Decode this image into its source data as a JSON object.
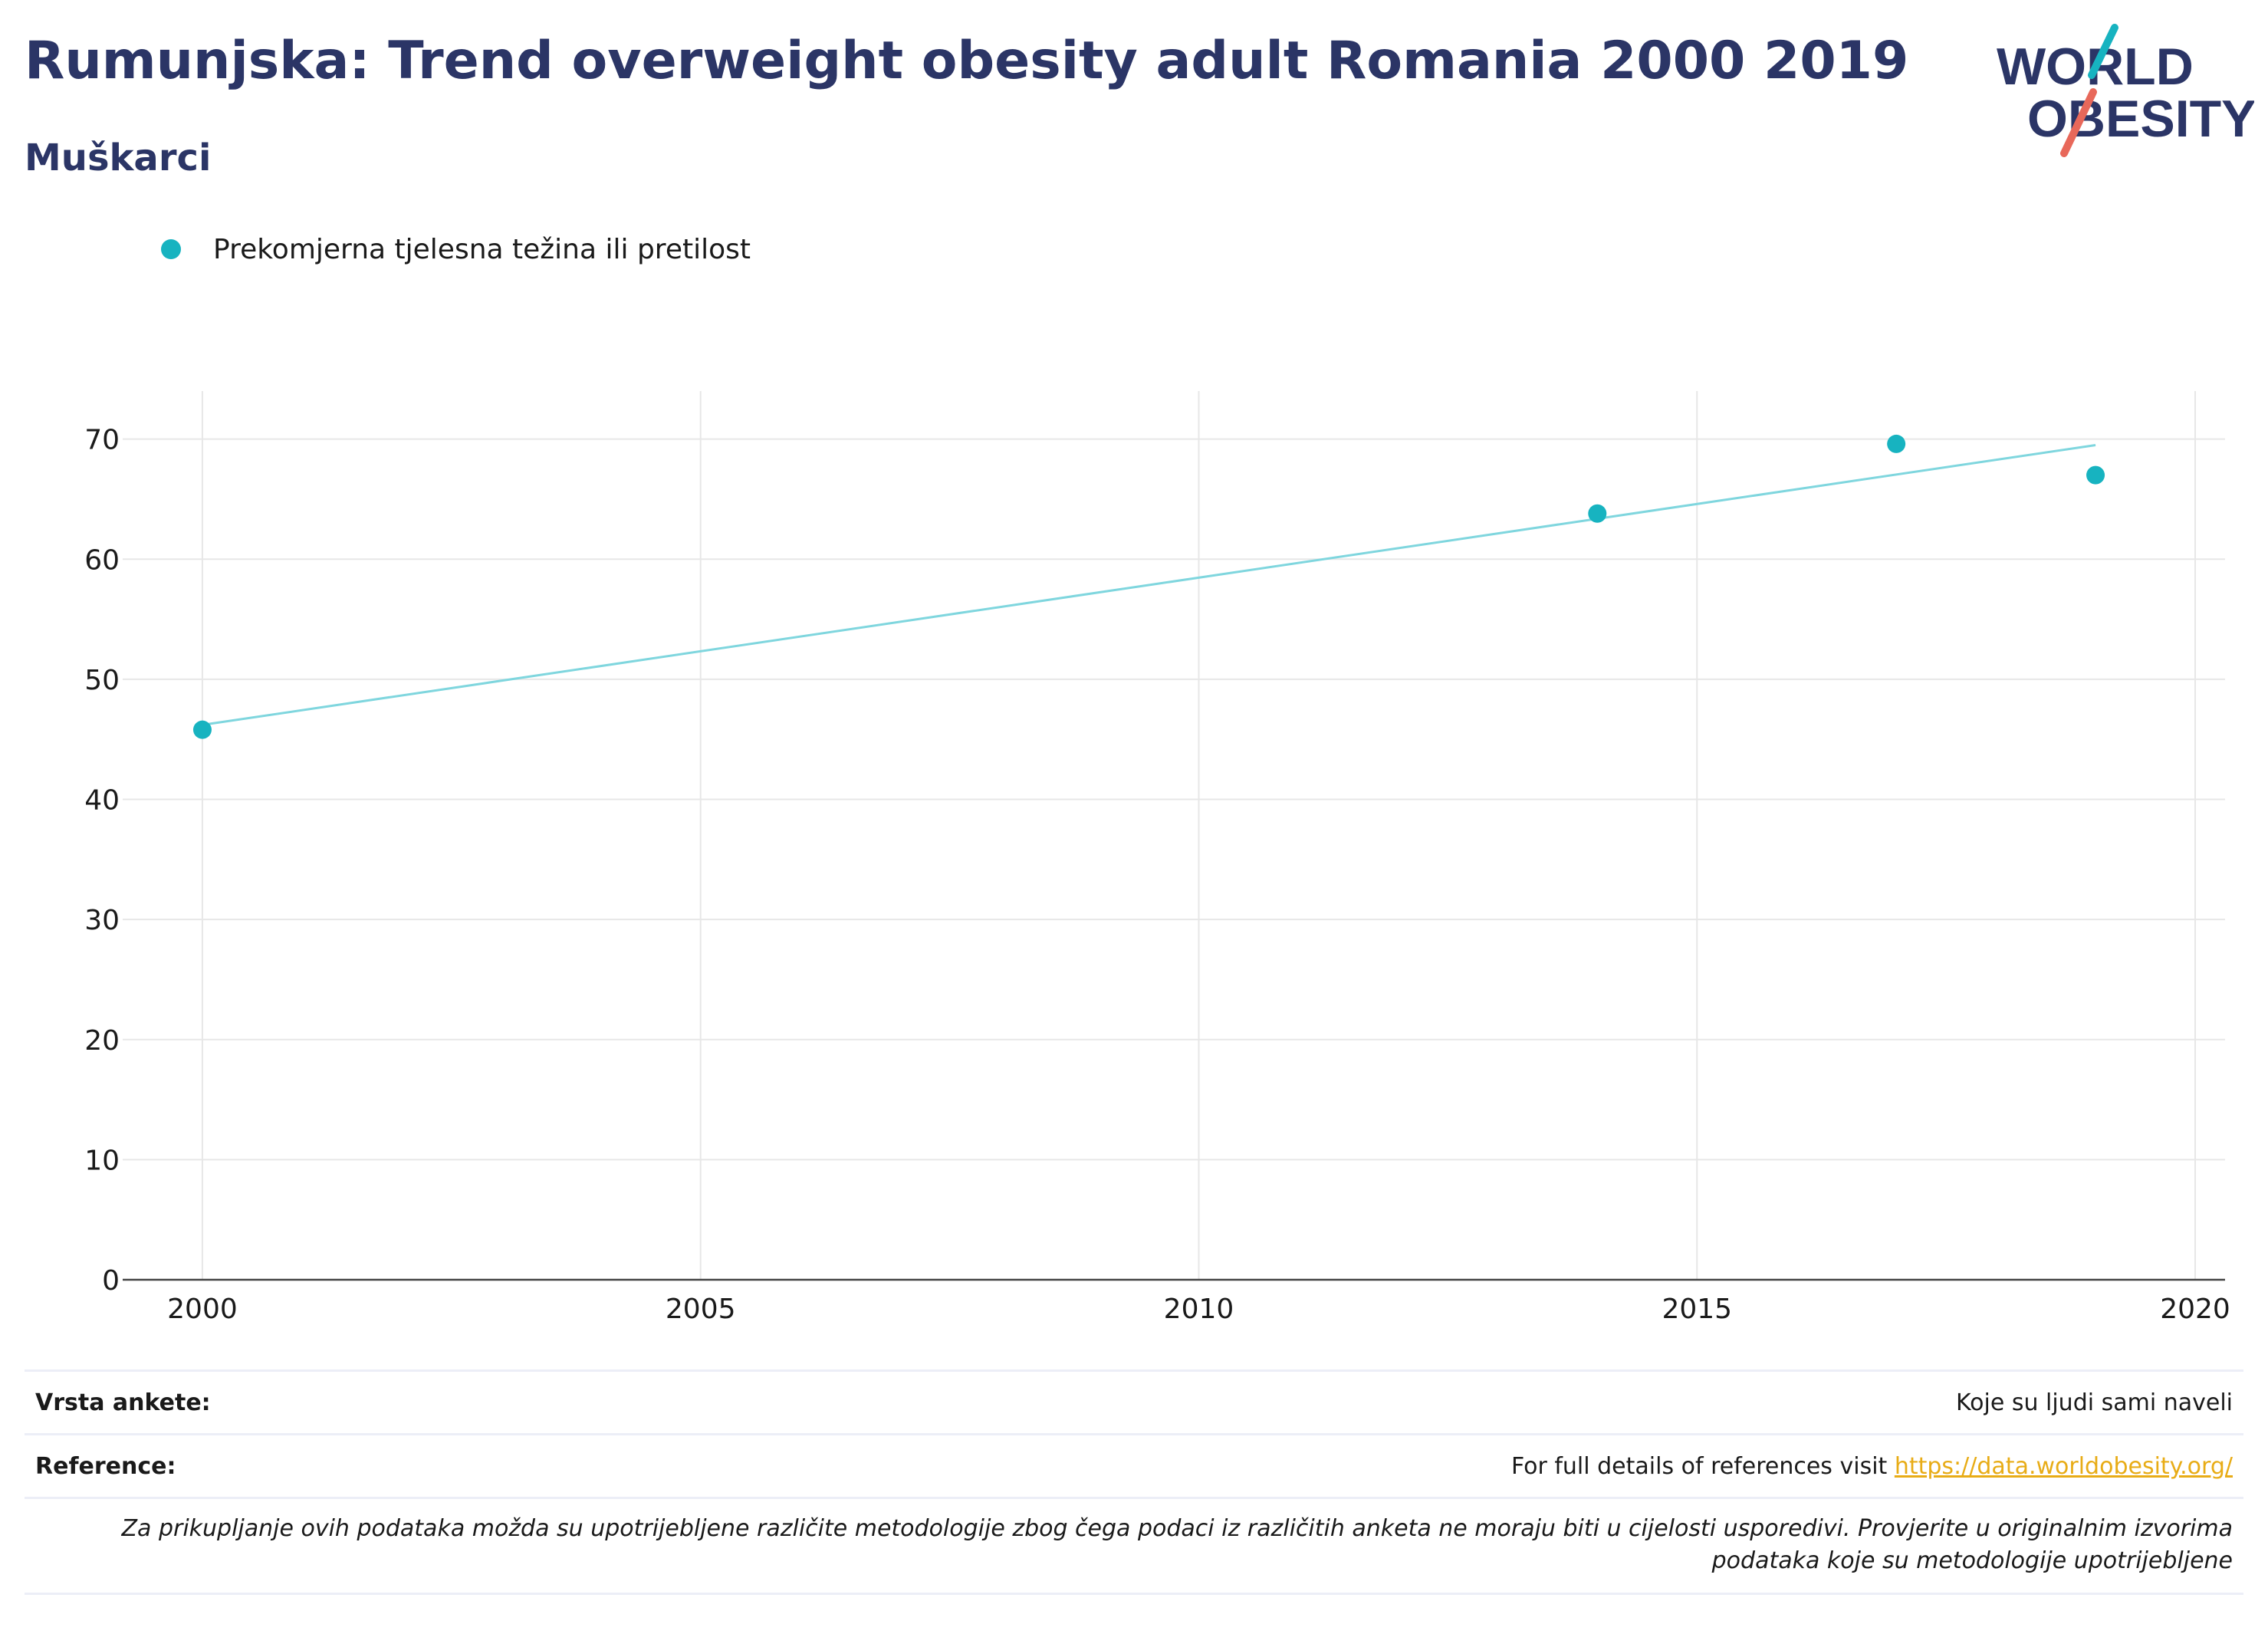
{
  "header": {
    "title": "Rumunjska: Trend overweight obesity adult Romania 2000 2019",
    "subtitle": "Muškarci"
  },
  "logo": {
    "line1": "WORLD",
    "line2": "OBESITY",
    "colors": {
      "navy": "#2b3566",
      "teal": "#17b3c0",
      "coral": "#e8685a"
    }
  },
  "legend": {
    "label": "Prekomjerna tjelesna težina ili pretilost"
  },
  "chart_data": {
    "type": "scatter",
    "title": "",
    "xlabel": "",
    "ylabel": "",
    "xlim": [
      1999.2,
      2020.3
    ],
    "ylim": [
      0,
      74
    ],
    "x_ticks": [
      2000,
      2005,
      2010,
      2015,
      2020
    ],
    "y_ticks": [
      0,
      10,
      20,
      30,
      40,
      50,
      60,
      70
    ],
    "grid": true,
    "legend_position": "top-left",
    "series": [
      {
        "name": "Prekomjerna tjelesna težina ili pretilost",
        "color": "#17b3c0",
        "points": [
          {
            "x": 2000,
            "y": 45.8
          },
          {
            "x": 2014,
            "y": 63.8
          },
          {
            "x": 2017,
            "y": 69.6
          },
          {
            "x": 2019,
            "y": 67.0
          }
        ]
      }
    ],
    "trendline": {
      "color": "#7fd6de",
      "x": [
        2000,
        2019
      ],
      "y": [
        46.2,
        69.5
      ]
    }
  },
  "footer": {
    "survey_label": "Vrsta ankete:",
    "survey_value": "Koje su ljudi sami naveli",
    "reference_label": "Reference:",
    "reference_text": "For full details of references visit",
    "reference_link": "https://data.worldobesity.org/",
    "note": "Za prikupljanje ovih podataka možda su upotrijebljene različite metodologije zbog čega podaci iz različitih anketa ne moraju biti u cijelosti usporedivi. Provjerite u originalnim izvorima podataka koje su metodologije upotrijebljene"
  }
}
